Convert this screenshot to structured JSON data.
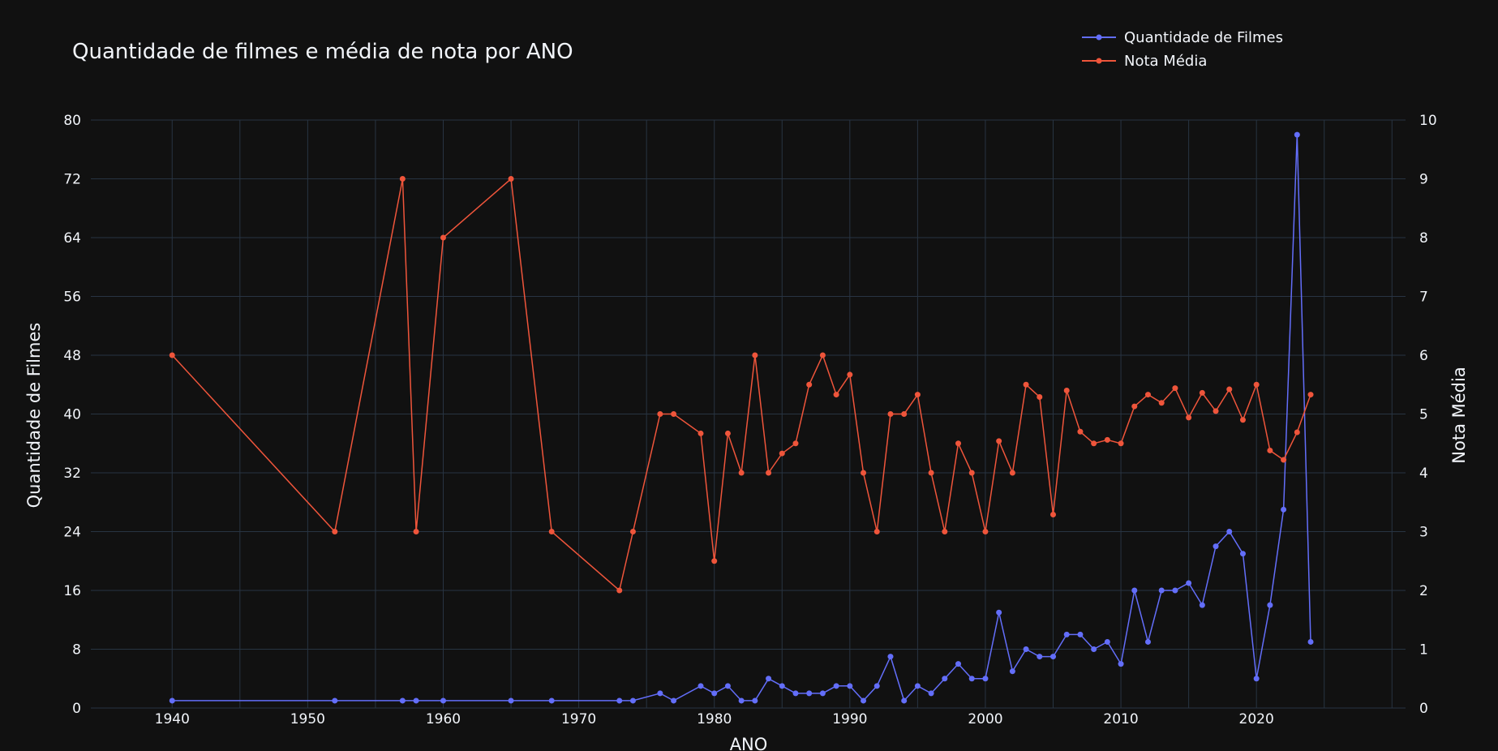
{
  "chart_data": {
    "type": "line",
    "title": "Quantidade de filmes e média de nota por ANO",
    "xlabel": "ANO",
    "ylabel": "Quantidade de Filmes",
    "y2label": "Nota Média",
    "xlim": [
      1934,
      2031
    ],
    "ylim": [
      0,
      80
    ],
    "y2lim": [
      0,
      10
    ],
    "xticks": [
      1940,
      1950,
      1960,
      1970,
      1980,
      1990,
      2000,
      2010,
      2020
    ],
    "yticks": [
      0,
      8,
      16,
      24,
      32,
      40,
      48,
      56,
      64,
      72,
      80
    ],
    "y2ticks": [
      0,
      1,
      2,
      3,
      4,
      5,
      6,
      7,
      8,
      9,
      10
    ],
    "grid": true,
    "legend_position": "top-right",
    "x": [
      1940,
      1952,
      1957,
      1958,
      1960,
      1965,
      1968,
      1973,
      1974,
      1976,
      1977,
      1979,
      1980,
      1981,
      1982,
      1983,
      1984,
      1985,
      1986,
      1987,
      1988,
      1989,
      1990,
      1991,
      1992,
      1993,
      1994,
      1995,
      1996,
      1997,
      1998,
      1999,
      2000,
      2001,
      2002,
      2003,
      2004,
      2005,
      2006,
      2007,
      2008,
      2009,
      2010,
      2011,
      2012,
      2013,
      2014,
      2015,
      2016,
      2017,
      2018,
      2019,
      2020,
      2021,
      2022,
      2023,
      2024
    ],
    "series": [
      {
        "name": "Quantidade de Filmes",
        "axis": "y",
        "color": "#636efa",
        "values": [
          1,
          1,
          1,
          1,
          1,
          1,
          1,
          1,
          1,
          2,
          1,
          3,
          2,
          3,
          1,
          1,
          4,
          3,
          2,
          2,
          2,
          3,
          3,
          1,
          3,
          7,
          1,
          3,
          2,
          4,
          6,
          4,
          4,
          13,
          5,
          8,
          7,
          7,
          10,
          10,
          8,
          9,
          6,
          16,
          9,
          16,
          16,
          17,
          14,
          22,
          24,
          21,
          4,
          14,
          27,
          78,
          9
        ]
      },
      {
        "name": "Nota Média",
        "axis": "y2",
        "color": "#ef553b",
        "values": [
          6,
          3,
          9,
          3,
          8,
          9,
          3,
          2,
          3,
          5,
          5,
          4.67,
          2.5,
          4.67,
          4,
          6,
          4,
          4.33,
          4.5,
          5.5,
          6,
          5.33,
          5.67,
          4,
          3,
          5,
          5,
          5.33,
          4,
          3,
          4.5,
          4,
          3,
          4.54,
          4,
          5.5,
          5.29,
          3.29,
          5.4,
          4.7,
          4.5,
          4.56,
          4.5,
          5.13,
          5.33,
          5.19,
          5.44,
          4.94,
          5.36,
          5.05,
          5.42,
          4.9,
          5.5,
          4.38,
          4.22,
          4.69,
          5.33
        ]
      }
    ]
  }
}
